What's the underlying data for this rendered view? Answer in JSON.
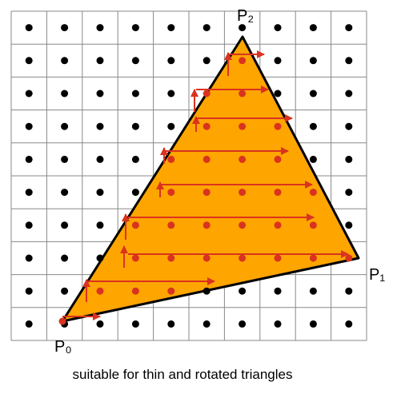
{
  "vertices": {
    "p0": "P₀",
    "p1": "P₁",
    "p2": "P₂"
  },
  "caption": "suitable for thin and rotated triangles"
}
